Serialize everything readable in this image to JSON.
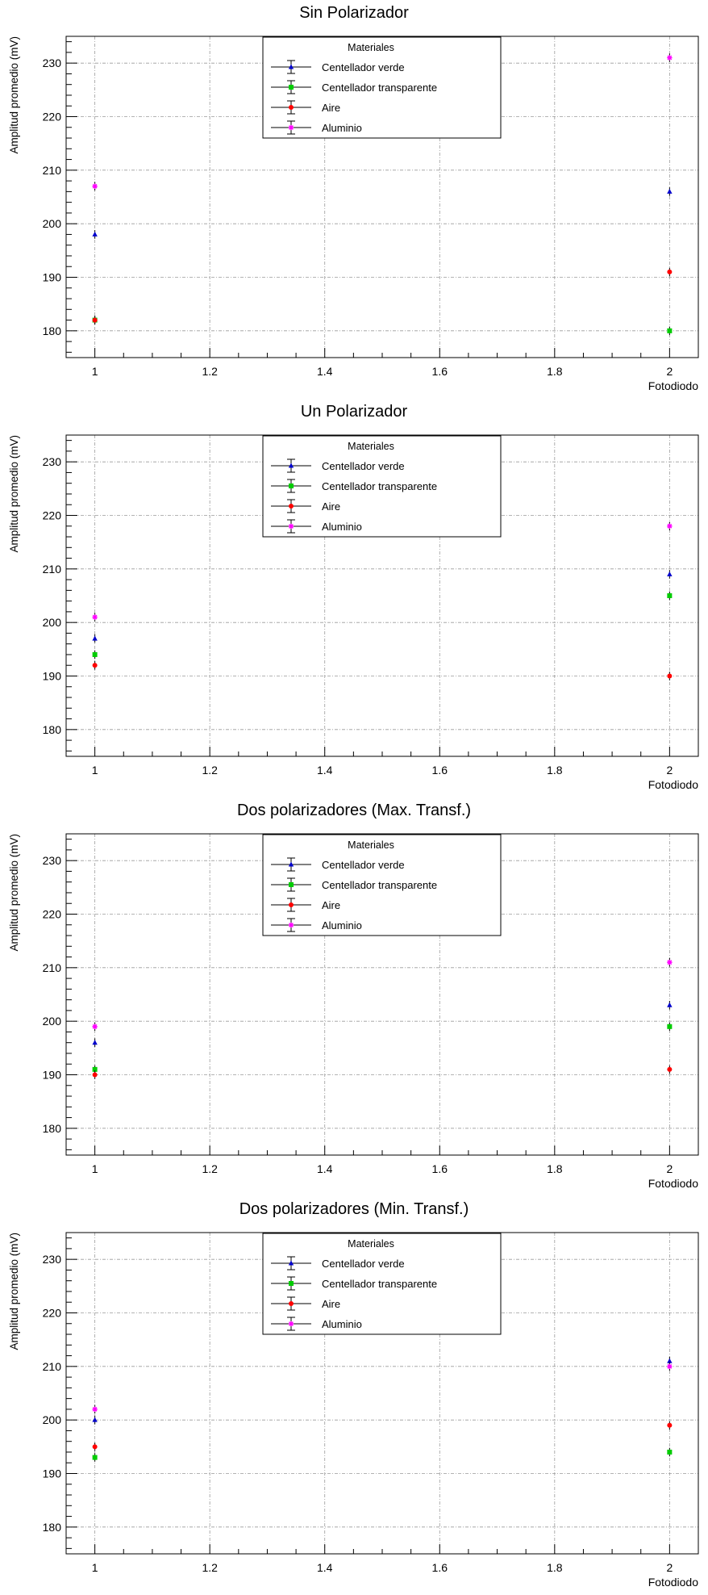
{
  "chart_data": [
    {
      "type": "scatter",
      "title": "Sin Polarizador",
      "xlabel": "Fotodiodo",
      "ylabel": "Amplitud promedio (mV)",
      "xlim": [
        0.95,
        2.05
      ],
      "ylim": [
        175,
        235
      ],
      "x_ticks": [
        1,
        1.2,
        1.4,
        1.6,
        1.8,
        2
      ],
      "x_tick_labels": [
        "1",
        "1.2",
        "1.4",
        "1.6",
        "1.8",
        "2"
      ],
      "y_ticks": [
        180,
        190,
        200,
        210,
        220,
        230
      ],
      "y_tick_labels": [
        "180",
        "190",
        "200",
        "210",
        "220",
        "230"
      ],
      "grid": true,
      "legend": {
        "title": "Materiales",
        "position": "top-center"
      },
      "series": [
        {
          "name": "Centellador verde",
          "color": "#0000cc",
          "marker": "triangle",
          "x": [
            1,
            2
          ],
          "values": [
            198,
            206
          ],
          "errors": [
            0.8,
            0.8
          ]
        },
        {
          "name": "Centellador transparente",
          "color": "#00cc00",
          "marker": "square",
          "x": [
            1,
            2
          ],
          "values": [
            182,
            180
          ],
          "errors": [
            0.8,
            0.8
          ]
        },
        {
          "name": "Aire",
          "color": "#ff0000",
          "marker": "circle",
          "x": [
            1,
            2
          ],
          "values": [
            182,
            191
          ],
          "errors": [
            0.8,
            0.8
          ]
        },
        {
          "name": "Aluminio",
          "color": "#ff00ff",
          "marker": "star",
          "x": [
            1,
            2
          ],
          "values": [
            207,
            231
          ],
          "errors": [
            0.8,
            0.8
          ]
        }
      ]
    },
    {
      "type": "scatter",
      "title": "Un Polarizador",
      "xlabel": "Fotodiodo",
      "ylabel": "Amplitud promedio (mV)",
      "xlim": [
        0.95,
        2.05
      ],
      "ylim": [
        175,
        235
      ],
      "x_ticks": [
        1,
        1.2,
        1.4,
        1.6,
        1.8,
        2
      ],
      "x_tick_labels": [
        "1",
        "1.2",
        "1.4",
        "1.6",
        "1.8",
        "2"
      ],
      "y_ticks": [
        180,
        190,
        200,
        210,
        220,
        230
      ],
      "y_tick_labels": [
        "180",
        "190",
        "200",
        "210",
        "220",
        "230"
      ],
      "grid": true,
      "legend": {
        "title": "Materiales",
        "position": "top-center"
      },
      "series": [
        {
          "name": "Centellador verde",
          "color": "#0000cc",
          "marker": "triangle",
          "x": [
            1,
            2
          ],
          "values": [
            197,
            209
          ],
          "errors": [
            0.8,
            0.8
          ]
        },
        {
          "name": "Centellador transparente",
          "color": "#00cc00",
          "marker": "square",
          "x": [
            1,
            2
          ],
          "values": [
            194,
            205
          ],
          "errors": [
            0.8,
            0.8
          ]
        },
        {
          "name": "Aire",
          "color": "#ff0000",
          "marker": "circle",
          "x": [
            1,
            2
          ],
          "values": [
            192,
            190
          ],
          "errors": [
            0.8,
            0.8
          ]
        },
        {
          "name": "Aluminio",
          "color": "#ff00ff",
          "marker": "star",
          "x": [
            1,
            2
          ],
          "values": [
            201,
            218
          ],
          "errors": [
            0.8,
            0.8
          ]
        }
      ]
    },
    {
      "type": "scatter",
      "title": "Dos polarizadores (Max. Transf.)",
      "xlabel": "Fotodiodo",
      "ylabel": "Amplitud promedio (mV)",
      "xlim": [
        0.95,
        2.05
      ],
      "ylim": [
        175,
        235
      ],
      "x_ticks": [
        1,
        1.2,
        1.4,
        1.6,
        1.8,
        2
      ],
      "x_tick_labels": [
        "1",
        "1.2",
        "1.4",
        "1.6",
        "1.8",
        "2"
      ],
      "y_ticks": [
        180,
        190,
        200,
        210,
        220,
        230
      ],
      "y_tick_labels": [
        "180",
        "190",
        "200",
        "210",
        "220",
        "230"
      ],
      "grid": true,
      "legend": {
        "title": "Materiales",
        "position": "top-center"
      },
      "series": [
        {
          "name": "Centellador verde",
          "color": "#0000cc",
          "marker": "triangle",
          "x": [
            1,
            2
          ],
          "values": [
            196,
            203
          ],
          "errors": [
            0.8,
            0.8
          ]
        },
        {
          "name": "Centellador transparente",
          "color": "#00cc00",
          "marker": "square",
          "x": [
            1,
            2
          ],
          "values": [
            191,
            199
          ],
          "errors": [
            0.8,
            0.8
          ]
        },
        {
          "name": "Aire",
          "color": "#ff0000",
          "marker": "circle",
          "x": [
            1,
            2
          ],
          "values": [
            190,
            191
          ],
          "errors": [
            0.8,
            0.8
          ]
        },
        {
          "name": "Aluminio",
          "color": "#ff00ff",
          "marker": "star",
          "x": [
            1,
            2
          ],
          "values": [
            199,
            211
          ],
          "errors": [
            0.8,
            0.8
          ]
        }
      ]
    },
    {
      "type": "scatter",
      "title": "Dos polarizadores (Min. Transf.)",
      "xlabel": "Fotodiodo",
      "ylabel": "Amplitud promedio (mV)",
      "xlim": [
        0.95,
        2.05
      ],
      "ylim": [
        175,
        235
      ],
      "x_ticks": [
        1,
        1.2,
        1.4,
        1.6,
        1.8,
        2
      ],
      "x_tick_labels": [
        "1",
        "1.2",
        "1.4",
        "1.6",
        "1.8",
        "2"
      ],
      "y_ticks": [
        180,
        190,
        200,
        210,
        220,
        230
      ],
      "y_tick_labels": [
        "180",
        "190",
        "200",
        "210",
        "220",
        "230"
      ],
      "grid": true,
      "legend": {
        "title": "Materiales",
        "position": "top-center"
      },
      "series": [
        {
          "name": "Centellador verde",
          "color": "#0000cc",
          "marker": "triangle",
          "x": [
            1,
            2
          ],
          "values": [
            200,
            211
          ],
          "errors": [
            0.8,
            0.8
          ]
        },
        {
          "name": "Centellador transparente",
          "color": "#00cc00",
          "marker": "square",
          "x": [
            1,
            2
          ],
          "values": [
            193,
            194
          ],
          "errors": [
            0.8,
            0.8
          ]
        },
        {
          "name": "Aire",
          "color": "#ff0000",
          "marker": "circle",
          "x": [
            1,
            2
          ],
          "values": [
            195,
            199
          ],
          "errors": [
            0.8,
            0.8
          ]
        },
        {
          "name": "Aluminio",
          "color": "#ff00ff",
          "marker": "star",
          "x": [
            1,
            2
          ],
          "values": [
            202,
            210
          ],
          "errors": [
            0.8,
            0.8
          ]
        }
      ]
    }
  ]
}
